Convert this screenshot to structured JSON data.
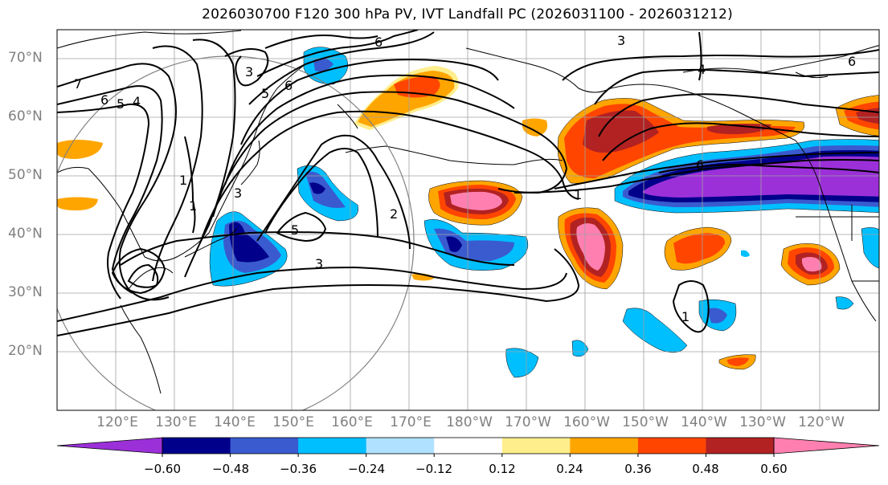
{
  "title": "2026030700 F120 300 hPa PV, IVT Landfall PC (2026031100 - 2026031212)",
  "lat_labels": [
    "70°N",
    "60°N",
    "50°N",
    "40°N",
    "30°N",
    "20°N"
  ],
  "lon_labels": [
    "120°E",
    "130°E",
    "140°E",
    "150°E",
    "160°E",
    "170°E",
    "180°W",
    "170°W",
    "160°W",
    "150°W",
    "140°W",
    "130°W",
    "120°W"
  ],
  "contour_labels": [
    "7",
    "6",
    "5",
    "4",
    "3",
    "6",
    "5",
    "6",
    "2",
    "5",
    "3",
    "1",
    "1",
    "1",
    "6",
    "4",
    "3",
    "6",
    "1",
    "3"
  ],
  "colorbar": {
    "ticks": [
      "−0.60",
      "−0.48",
      "−0.36",
      "−0.24",
      "−0.12",
      "0.12",
      "0.24",
      "0.36",
      "0.48",
      "0.60"
    ],
    "colors": [
      "#9b30d9",
      "#00008b",
      "#3a5bcf",
      "#00bfff",
      "#b0e2ff",
      "#ffffff",
      "#ffee8c",
      "#ffa500",
      "#ff4500",
      "#b22222",
      "#ff80b0"
    ]
  }
}
